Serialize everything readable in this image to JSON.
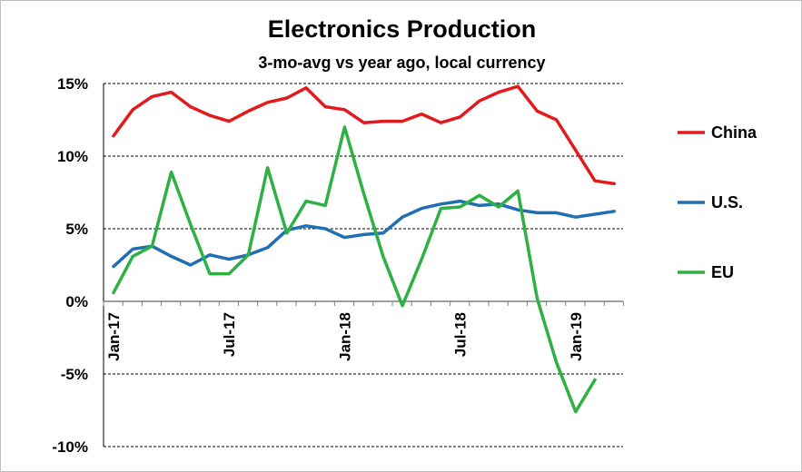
{
  "chart_data": {
    "type": "line",
    "title": "Electronics Production",
    "subtitle": "3-mo-avg vs year ago, local currency",
    "xlabel": "",
    "ylabel": "",
    "x": [
      "Jan-17",
      "Feb-17",
      "Mar-17",
      "Apr-17",
      "May-17",
      "Jun-17",
      "Jul-17",
      "Aug-17",
      "Sep-17",
      "Oct-17",
      "Nov-17",
      "Dec-17",
      "Jan-18",
      "Feb-18",
      "Mar-18",
      "Apr-18",
      "May-18",
      "Jun-18",
      "Jul-18",
      "Aug-18",
      "Sep-18",
      "Oct-18",
      "Nov-18",
      "Dec-18",
      "Jan-19",
      "Feb-19",
      "Mar-19"
    ],
    "x_tick_labels": [
      "Jan-17",
      "Jul-17",
      "Jan-18",
      "Jul-18",
      "Jan-19"
    ],
    "y_tick_labels": [
      "15%",
      "10%",
      "5%",
      "0%",
      "-5%",
      "-10%"
    ],
    "ylim": [
      -10,
      15
    ],
    "y_unit": "%",
    "grid": "horizontal dashed",
    "legend_position": "right",
    "series": [
      {
        "name": "China",
        "color": "#e31a1c",
        "values": [
          11.4,
          13.2,
          14.1,
          14.4,
          13.4,
          12.8,
          12.4,
          13.1,
          13.7,
          14.0,
          14.7,
          13.4,
          13.2,
          12.3,
          12.4,
          12.4,
          12.9,
          12.3,
          12.7,
          13.8,
          14.4,
          14.8,
          13.1,
          12.5,
          10.4,
          8.3,
          8.1
        ]
      },
      {
        "name": "U.S.",
        "color": "#1f6fb2",
        "values": [
          2.4,
          3.6,
          3.8,
          3.1,
          2.5,
          3.2,
          2.9,
          3.2,
          3.7,
          4.9,
          5.2,
          5.0,
          4.4,
          4.6,
          4.7,
          5.8,
          6.4,
          6.7,
          6.9,
          6.6,
          6.7,
          6.3,
          6.1,
          6.1,
          5.8,
          6.0,
          6.2
        ]
      },
      {
        "name": "EU",
        "color": "#2eb045",
        "values": [
          0.6,
          3.1,
          3.8,
          8.9,
          5.3,
          1.9,
          1.9,
          3.2,
          9.2,
          4.7,
          6.9,
          6.6,
          12.0,
          7.4,
          3.1,
          -0.3,
          2.9,
          6.4,
          6.5,
          7.3,
          6.5,
          7.6,
          0.2,
          -4.2,
          -7.6,
          -5.4,
          null
        ]
      }
    ]
  }
}
